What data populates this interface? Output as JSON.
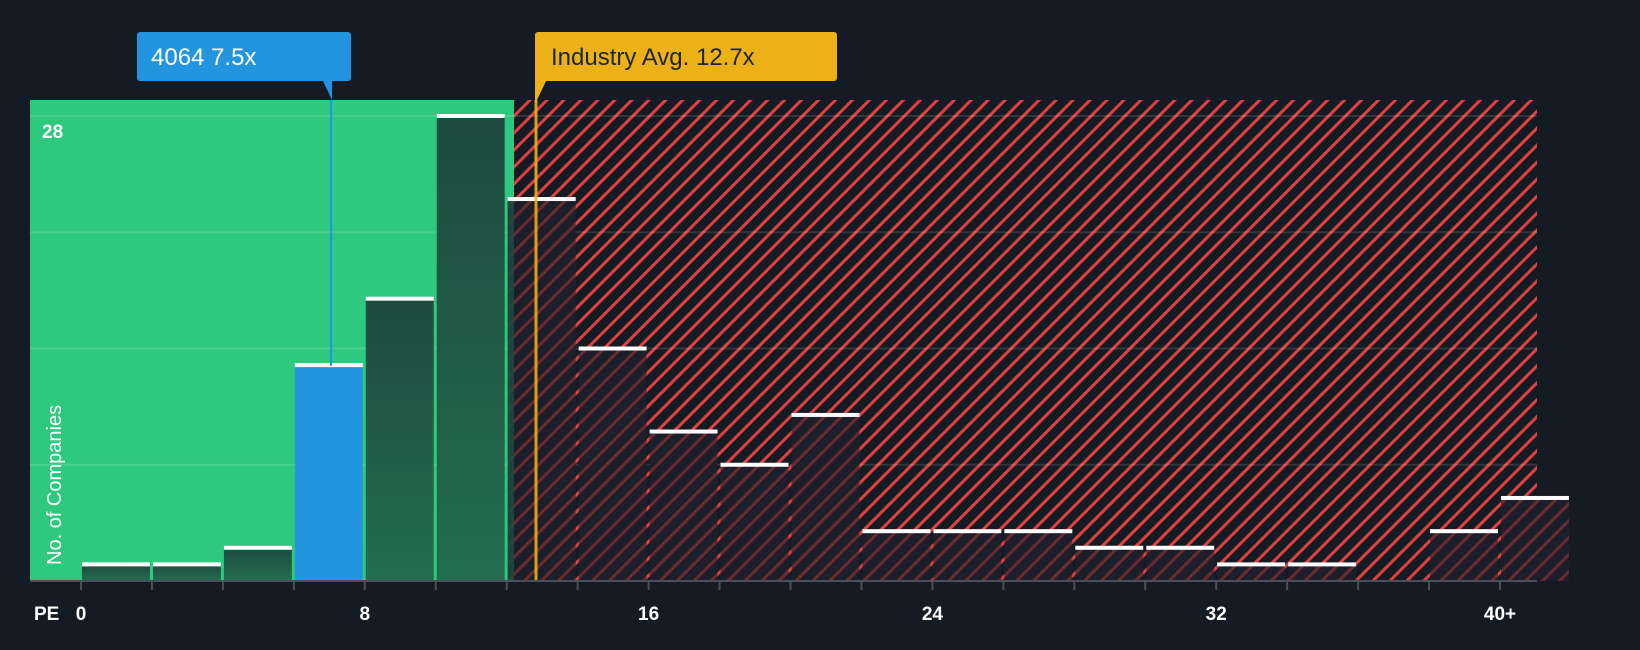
{
  "chart_data": {
    "type": "bar",
    "title": "",
    "xlabel": "PE",
    "ylabel": "No. of Companies",
    "x_tick_labels": [
      "0",
      "8",
      "16",
      "24",
      "32",
      "40+"
    ],
    "x_tick_values": [
      0,
      8,
      16,
      24,
      32,
      40
    ],
    "y_tick_labels": [
      "28"
    ],
    "y_gridlines": [
      7,
      14,
      21,
      28
    ],
    "ylim": [
      0,
      28
    ],
    "xlim": [
      -1.4,
      41
    ],
    "bin_width": 2,
    "categories": [
      "0-2",
      "2-4",
      "4-6",
      "6-8",
      "8-10",
      "10-12",
      "12-14",
      "14-16",
      "16-18",
      "18-20",
      "20-22",
      "22-24",
      "24-26",
      "26-28",
      "28-30",
      "30-32",
      "32-34",
      "34-36",
      "36-38",
      "38-40",
      "40+"
    ],
    "bin_starts": [
      0,
      2,
      4,
      6,
      8,
      10,
      12,
      14,
      16,
      18,
      20,
      22,
      24,
      26,
      28,
      30,
      32,
      34,
      36,
      38,
      40
    ],
    "values": [
      1,
      1,
      2,
      13,
      17,
      28,
      23,
      14,
      9,
      7,
      10,
      3,
      3,
      3,
      2,
      2,
      1,
      1,
      0,
      3,
      5
    ],
    "highlight_bin_index": 3,
    "grid": true,
    "legend": null,
    "annotations": [
      {
        "label": "4064 7.5x",
        "x": 7.5,
        "color": "#2394df",
        "text_color": "#ffffff"
      },
      {
        "label": "Industry Avg. 12.7x",
        "x": 12.7,
        "color": "#ecb117",
        "text_color": "#1f2630"
      }
    ],
    "regions": [
      {
        "name": "undervalued",
        "from": -1.4,
        "to": 12.2,
        "color": "#2ec97f"
      },
      {
        "name": "overvalued",
        "from": 12.2,
        "to": 41,
        "color": "#e0403f",
        "pattern": "diagonal-hatch"
      }
    ]
  },
  "colors": {
    "background": "#151b24",
    "green_zone": "#2ec97f",
    "hatch": "#e0403f",
    "bar_green_zone": "#1f4a40",
    "bar_red_zone": "#1c1f29",
    "bar_highlight": "#2394df",
    "bar_cap": "#ffffff",
    "company_line": "#2394df",
    "industry_line": "#ecb117",
    "axis": "#4a5058",
    "gridline": "rgba(255,255,255,0.12)"
  },
  "labels": {
    "company_callout": "4064 7.5x",
    "industry_callout": "Industry Avg. 12.7x",
    "y_axis_title": "No. of Companies",
    "x_axis_title": "PE",
    "y_max_label": "28"
  }
}
